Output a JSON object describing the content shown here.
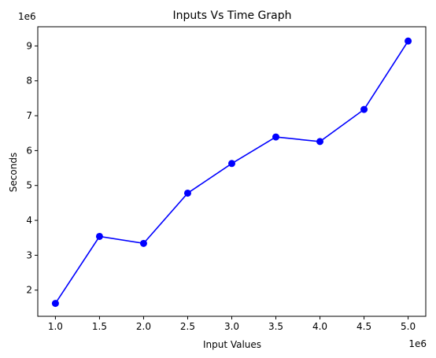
{
  "chart_data": {
    "type": "line",
    "title": "Inputs Vs Time Graph",
    "xlabel": "Input Values",
    "ylabel": "Seconds",
    "x_offset_label": "1e6",
    "y_offset_label": "1e6",
    "x_ticks": [
      "1.0",
      "1.5",
      "2.0",
      "2.5",
      "3.0",
      "3.5",
      "4.0",
      "4.5",
      "5.0"
    ],
    "y_ticks": [
      "2",
      "3",
      "4",
      "5",
      "6",
      "7",
      "8",
      "9"
    ],
    "xlim": [
      0.8,
      5.2
    ],
    "ylim": [
      1.25,
      9.55
    ],
    "grid": false,
    "series": [
      {
        "color": "#0000ff",
        "marker": "circle",
        "x": [
          1.0,
          1.5,
          2.0,
          2.5,
          3.0,
          3.5,
          4.0,
          4.5,
          5.0
        ],
        "y": [
          1.62,
          3.54,
          3.34,
          4.78,
          5.63,
          6.39,
          6.26,
          7.18,
          9.14
        ]
      }
    ]
  }
}
